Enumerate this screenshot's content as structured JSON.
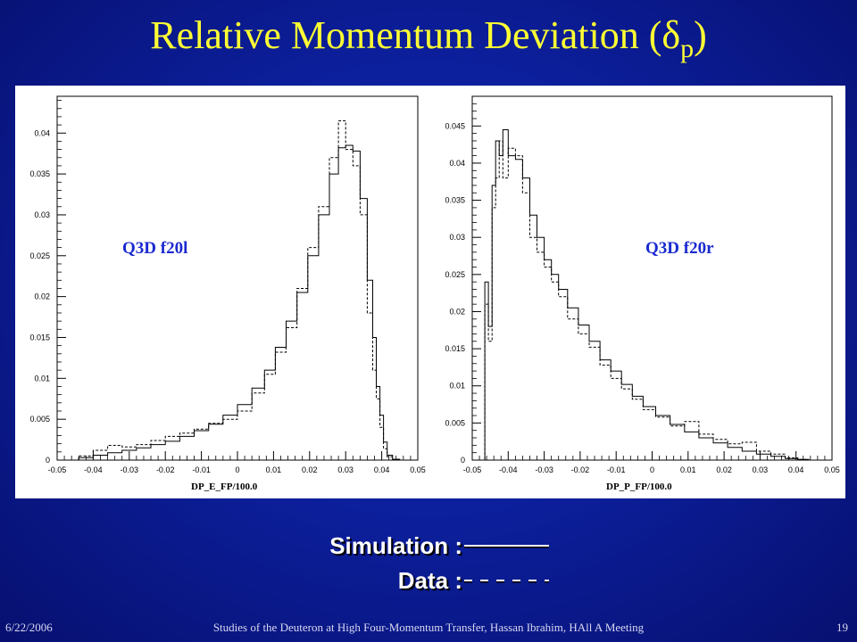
{
  "title": {
    "main": "Relative Momentum Deviation (",
    "symbol": "δ",
    "subscript": "p",
    "close": ")"
  },
  "legend": {
    "simulation": {
      "label": "Simulation :",
      "style": "solid"
    },
    "data": {
      "label": "Data :",
      "style": "dashed"
    }
  },
  "footer": {
    "date": "6/22/2006",
    "text": "Studies of the Deuteron at High Four-Momentum Transfer, Hassan Ibrahim, HAll A Meeting",
    "page": "19"
  },
  "chart_data": [
    {
      "type": "line",
      "annotation": "Q3D f20l",
      "xlabel": "DP_E_FP/100.0",
      "xlim": [
        -0.05,
        0.05
      ],
      "ylim": [
        0,
        0.0445
      ],
      "xticks": [
        -0.05,
        -0.04,
        -0.03,
        -0.02,
        -0.01,
        0,
        0.01,
        0.02,
        0.03,
        0.04,
        0.05
      ],
      "xtick_labels": [
        "-0.05",
        "-0.04",
        "-0.03",
        "-0.02",
        "-0.01",
        "0",
        "0.01",
        "0.02",
        "0.03",
        "0.04",
        "0.05"
      ],
      "yticks": [
        0,
        0.005,
        0.01,
        0.015,
        0.02,
        0.025,
        0.03,
        0.035,
        0.04
      ],
      "ytick_labels": [
        "0",
        "0.005",
        "0.01",
        "0.015",
        "0.02",
        "0.025",
        "0.03",
        "0.035",
        "0.04"
      ],
      "x": [
        -0.042,
        -0.038,
        -0.034,
        -0.03,
        -0.026,
        -0.022,
        -0.018,
        -0.014,
        -0.01,
        -0.006,
        -0.002,
        0.002,
        0.006,
        0.009,
        0.012,
        0.015,
        0.018,
        0.021,
        0.024,
        0.027,
        0.029,
        0.031,
        0.033,
        0.035,
        0.037,
        0.038,
        0.039,
        0.04,
        0.041,
        0.042,
        0.044
      ],
      "series": [
        {
          "name": "Simulation",
          "style": "solid",
          "values": [
            0.0003,
            0.0006,
            0.0009,
            0.0012,
            0.0015,
            0.0019,
            0.0023,
            0.0029,
            0.0036,
            0.0044,
            0.0055,
            0.0068,
            0.0088,
            0.011,
            0.0138,
            0.017,
            0.0205,
            0.025,
            0.03,
            0.035,
            0.0382,
            0.0385,
            0.0378,
            0.032,
            0.022,
            0.015,
            0.009,
            0.0055,
            0.0022,
            0.0006,
            0.0001
          ]
        },
        {
          "name": "Data",
          "style": "dashed",
          "values": [
            0.0005,
            0.0012,
            0.0018,
            0.0016,
            0.0019,
            0.0024,
            0.0029,
            0.0033,
            0.0038,
            0.0045,
            0.005,
            0.006,
            0.0082,
            0.0105,
            0.0132,
            0.0162,
            0.021,
            0.026,
            0.031,
            0.037,
            0.0415,
            0.038,
            0.036,
            0.03,
            0.018,
            0.011,
            0.0075,
            0.004,
            0.0014,
            0.0004,
            0.0001
          ]
        }
      ]
    },
    {
      "type": "line",
      "annotation": "Q3D f20r",
      "xlabel": "DP_P_FP/100.0",
      "xlim": [
        -0.05,
        0.05
      ],
      "ylim": [
        0,
        0.049
      ],
      "xticks": [
        -0.05,
        -0.04,
        -0.03,
        -0.02,
        -0.01,
        0,
        0.01,
        0.02,
        0.03,
        0.04,
        0.05
      ],
      "xtick_labels": [
        "-0.05",
        "-0.04",
        "-0.03",
        "-0.02",
        "-0.01",
        "0",
        "0.01",
        "0.02",
        "0.03",
        "0.04",
        "0.05"
      ],
      "yticks": [
        0,
        0.005,
        0.01,
        0.015,
        0.02,
        0.025,
        0.03,
        0.035,
        0.04,
        0.045
      ],
      "ytick_labels": [
        "0",
        "0.005",
        "0.01",
        "0.015",
        "0.02",
        "0.025",
        "0.03",
        "0.035",
        "0.04",
        "0.045"
      ],
      "x": [
        -0.047,
        -0.046,
        -0.045,
        -0.044,
        -0.043,
        -0.042,
        -0.041,
        -0.039,
        -0.037,
        -0.035,
        -0.033,
        -0.031,
        -0.029,
        -0.027,
        -0.025,
        -0.022,
        -0.019,
        -0.016,
        -0.013,
        -0.01,
        -0.007,
        -0.004,
        -0.001,
        0.003,
        0.007,
        0.011,
        0.015,
        0.019,
        0.023,
        0.027,
        0.031,
        0.035,
        0.039,
        0.042
      ],
      "series": [
        {
          "name": "Simulation",
          "style": "solid",
          "values": [
            0.0,
            0.024,
            0.018,
            0.037,
            0.043,
            0.041,
            0.0445,
            0.041,
            0.0405,
            0.038,
            0.033,
            0.03,
            0.027,
            0.025,
            0.023,
            0.0205,
            0.0182,
            0.016,
            0.0135,
            0.012,
            0.0102,
            0.0086,
            0.0072,
            0.006,
            0.0048,
            0.0038,
            0.003,
            0.0023,
            0.0017,
            0.0012,
            0.0008,
            0.0005,
            0.0002,
            0.0001
          ]
        },
        {
          "name": "Data",
          "style": "dashed",
          "values": [
            0.0,
            0.021,
            0.016,
            0.034,
            0.038,
            0.043,
            0.038,
            0.042,
            0.041,
            0.036,
            0.03,
            0.028,
            0.026,
            0.024,
            0.022,
            0.019,
            0.017,
            0.0152,
            0.0128,
            0.011,
            0.0096,
            0.0082,
            0.0068,
            0.0058,
            0.0046,
            0.0052,
            0.0035,
            0.0028,
            0.0022,
            0.0024,
            0.0012,
            0.0008,
            0.0003,
            0.0001
          ]
        }
      ]
    }
  ]
}
